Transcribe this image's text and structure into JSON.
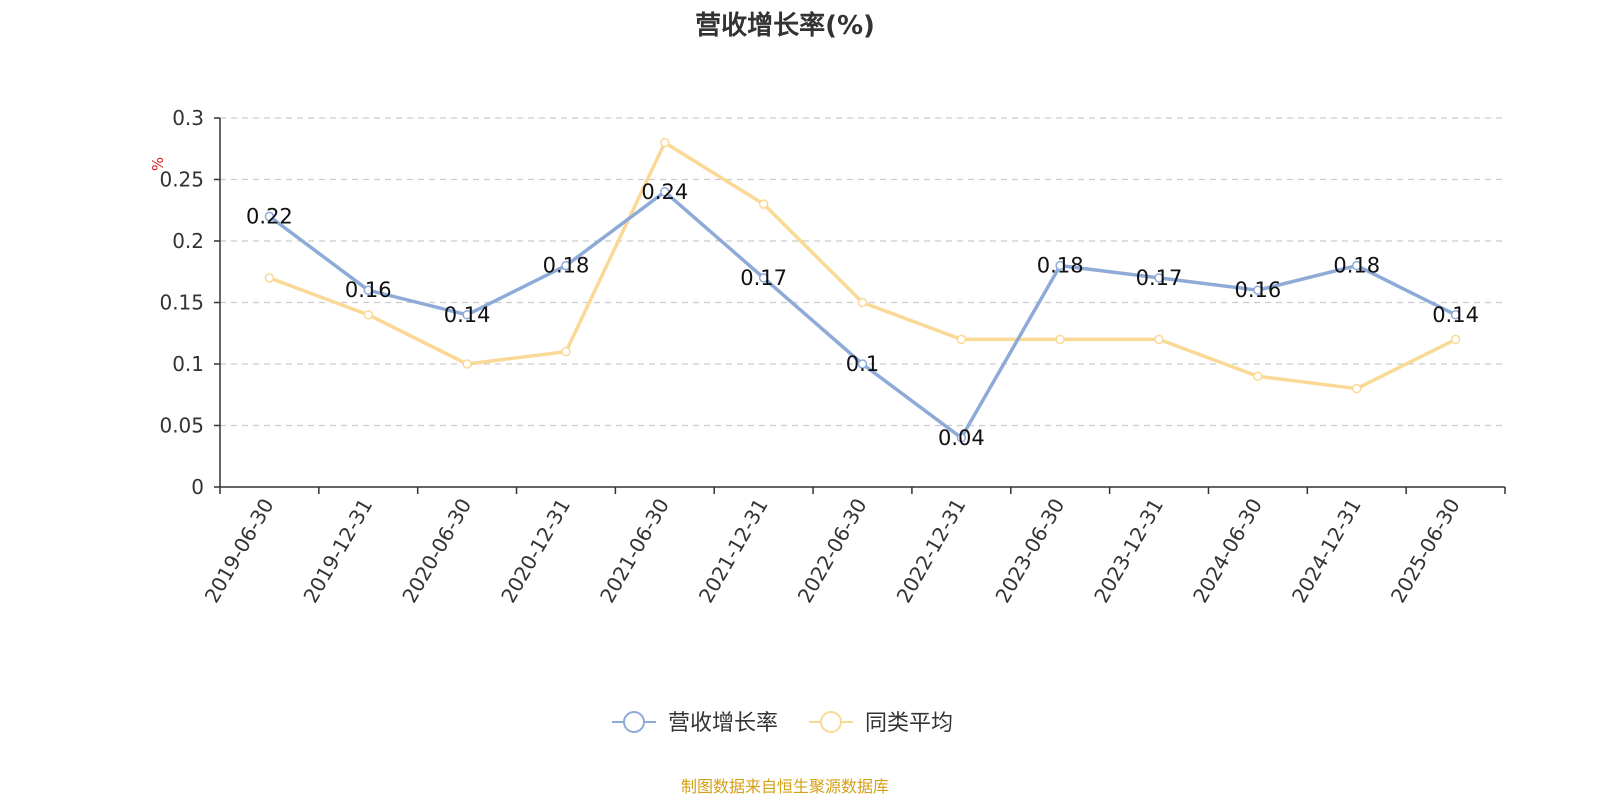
{
  "chart_data": {
    "type": "line",
    "title": "营收增长率(%)",
    "ylabel": "%",
    "xlabel": "",
    "ylim": [
      0,
      0.3
    ],
    "yticks": [
      "0",
      "0.05",
      "0.1",
      "0.15",
      "0.2",
      "0.25",
      "0.3"
    ],
    "grid": true,
    "legend_position": "bottom-center",
    "categories": [
      "2019-06-30",
      "2019-12-31",
      "2020-06-30",
      "2020-12-31",
      "2021-06-30",
      "2021-12-31",
      "2022-06-30",
      "2022-12-31",
      "2023-06-30",
      "2023-12-31",
      "2024-06-30",
      "2024-12-31",
      "2025-06-30"
    ],
    "series": [
      {
        "name": "营收增长率",
        "color": "#8eabd8",
        "values": [
          0.22,
          0.16,
          0.14,
          0.18,
          0.24,
          0.17,
          0.1,
          0.04,
          0.18,
          0.17,
          0.16,
          0.18,
          0.14
        ],
        "labels": [
          "0.22",
          "0.16",
          "0.14",
          "0.18",
          "0.24",
          "0.17",
          "0.1",
          "0.04",
          "0.18",
          "0.17",
          "0.16",
          "0.18",
          "0.14"
        ]
      },
      {
        "name": "同类平均",
        "color": "#fad996",
        "values": [
          0.17,
          0.14,
          0.1,
          0.11,
          0.28,
          0.23,
          0.15,
          0.12,
          0.12,
          0.12,
          0.09,
          0.08,
          0.12
        ]
      }
    ]
  },
  "colors": {
    "axis": "#333333",
    "grid": "#cccccc",
    "ylabel": "#e02020",
    "source": "#d4a017"
  },
  "source_text": "制图数据来自恒生聚源数据库"
}
